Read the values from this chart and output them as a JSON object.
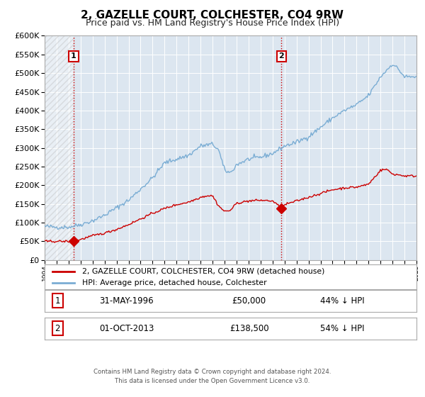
{
  "title": "2, GAZELLE COURT, COLCHESTER, CO4 9RW",
  "subtitle": "Price paid vs. HM Land Registry's House Price Index (HPI)",
  "title_fontsize": 11,
  "subtitle_fontsize": 9,
  "background_color": "#ffffff",
  "plot_bg_color": "#dce6f0",
  "grid_color": "#ffffff",
  "hpi_color": "#7aadd4",
  "price_color": "#cc0000",
  "vline_color": "#cc0000",
  "label_border_color": "#cc0000",
  "ylim": [
    0,
    600000
  ],
  "yticks": [
    0,
    50000,
    100000,
    150000,
    200000,
    250000,
    300000,
    350000,
    400000,
    450000,
    500000,
    550000,
    600000
  ],
  "legend_label_price": "2, GAZELLE COURT, COLCHESTER, CO4 9RW (detached house)",
  "legend_label_hpi": "HPI: Average price, detached house, Colchester",
  "transaction1_date": "31-MAY-1996",
  "transaction1_price": "£50,000",
  "transaction1_pct": "44% ↓ HPI",
  "transaction1_year": 1996.42,
  "transaction1_value": 50000,
  "transaction2_date": "01-OCT-2013",
  "transaction2_price": "£138,500",
  "transaction2_pct": "54% ↓ HPI",
  "transaction2_year": 2013.75,
  "transaction2_value": 138500,
  "footnote1": "Contains HM Land Registry data © Crown copyright and database right 2024.",
  "footnote2": "This data is licensed under the Open Government Licence v3.0.",
  "xmin": 1994,
  "xmax": 2025,
  "hatched_end_year": 1996.42
}
